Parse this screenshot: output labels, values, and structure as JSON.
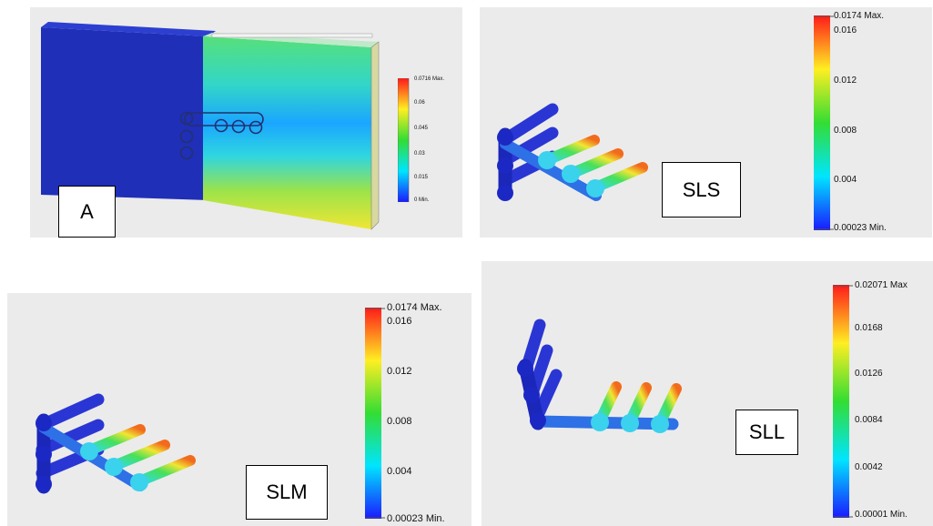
{
  "panels": {
    "a": {
      "label": "A",
      "scale": {
        "max": "0.0716 Max.",
        "ticks": [
          "0.06",
          "0.045",
          "0.03",
          "0.015"
        ],
        "min": "0 Min."
      }
    },
    "sls": {
      "label": "SLS",
      "scale": {
        "max": "0.0174 Max.",
        "ticks": [
          "0.016",
          "0.012",
          "0.008",
          "0.004"
        ],
        "min": "0.00023 Min."
      }
    },
    "slm": {
      "label": "SLM",
      "scale": {
        "max": "0.0174 Max.",
        "ticks": [
          "0.016",
          "0.012",
          "0.008",
          "0.004"
        ],
        "min": "0.00023 Min."
      }
    },
    "sll": {
      "label": "SLL",
      "scale": {
        "max": "0.02071 Max",
        "ticks": [
          "0.0168",
          "0.0126",
          "0.0084",
          "0.0042"
        ],
        "min": "0.00001 Min."
      }
    }
  },
  "colors": {
    "blue": "#1f2fd6",
    "cyan": "#2fd6e6",
    "green": "#3ddc4a",
    "yellow": "#f2e832",
    "red": "#e8251c"
  }
}
